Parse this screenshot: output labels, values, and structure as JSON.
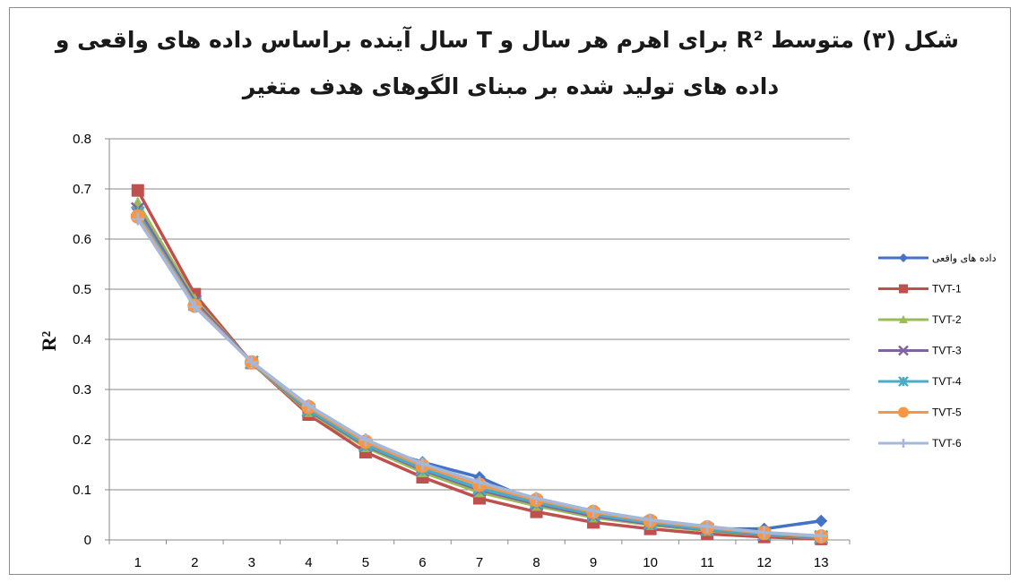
{
  "title_line1": "شکل (۳) متوسط R² برای اهرم هر سال و T سال آینده  براساس داده های واقعی و",
  "title_line2": "داده های تولید شده بر مبنای الگوهای هدف متغیر",
  "chart_data": {
    "type": "line",
    "title": "شکل (۳) متوسط R² برای اهرم هر سال و T سال آینده  براساس داده های واقعی و داده های تولید شده بر مبنای الگوهای هدف متغیر",
    "xlabel": "",
    "ylabel": "R²",
    "x": [
      1,
      2,
      3,
      4,
      5,
      6,
      7,
      8,
      9,
      10,
      11,
      12,
      13
    ],
    "ylim": [
      0,
      0.8
    ],
    "yticks": [
      "0",
      "0.1",
      "0.2",
      "0.3",
      "0.4",
      "0.5",
      "0.6",
      "0.7",
      "0.8"
    ],
    "grid": "horizontal",
    "legend_position": "right",
    "series": [
      {
        "name": "داده های واقعی",
        "color": "#4472c4",
        "marker": "diamond",
        "values": [
          0.66,
          0.475,
          0.355,
          0.26,
          0.19,
          0.155,
          0.125,
          0.075,
          0.05,
          0.035,
          0.022,
          0.022,
          0.038
        ]
      },
      {
        "name": "TVT-1",
        "color": "#c0504d",
        "marker": "square",
        "values": [
          0.697,
          0.49,
          0.353,
          0.25,
          0.175,
          0.125,
          0.083,
          0.056,
          0.035,
          0.022,
          0.012,
          0.006,
          0.002
        ]
      },
      {
        "name": "TVT-2",
        "color": "#9bbb59",
        "marker": "triangle",
        "values": [
          0.672,
          0.48,
          0.353,
          0.255,
          0.185,
          0.135,
          0.095,
          0.068,
          0.045,
          0.03,
          0.018,
          0.01,
          0.004
        ]
      },
      {
        "name": "TVT-3",
        "color": "#8064a2",
        "marker": "x",
        "values": [
          0.66,
          0.475,
          0.354,
          0.258,
          0.188,
          0.14,
          0.1,
          0.072,
          0.048,
          0.032,
          0.02,
          0.011,
          0.005
        ]
      },
      {
        "name": "TVT-4",
        "color": "#4bacc6",
        "marker": "star",
        "values": [
          0.652,
          0.47,
          0.354,
          0.26,
          0.19,
          0.142,
          0.103,
          0.075,
          0.051,
          0.034,
          0.021,
          0.012,
          0.006
        ]
      },
      {
        "name": "TVT-5",
        "color": "#f79646",
        "marker": "circle",
        "values": [
          0.645,
          0.467,
          0.354,
          0.265,
          0.196,
          0.148,
          0.11,
          0.08,
          0.056,
          0.038,
          0.025,
          0.014,
          0.007
        ]
      },
      {
        "name": "TVT-6",
        "color": "#a4b8dc",
        "marker": "plus",
        "values": [
          0.64,
          0.465,
          0.355,
          0.268,
          0.2,
          0.152,
          0.115,
          0.083,
          0.058,
          0.04,
          0.027,
          0.015,
          0.008
        ]
      }
    ]
  }
}
